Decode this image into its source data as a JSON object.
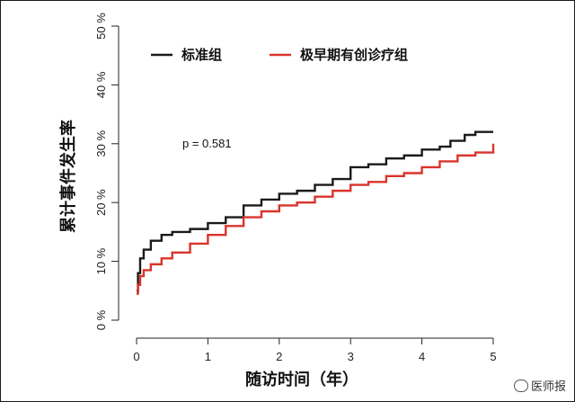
{
  "chart_data": {
    "type": "line",
    "title": "",
    "xlabel": "随访时间（年）",
    "ylabel": "累计事件发生率",
    "xlim": [
      0,
      5
    ],
    "ylim": [
      0,
      50
    ],
    "x_ticks": [
      "0",
      "1",
      "2",
      "3",
      "4",
      "5"
    ],
    "y_ticks": [
      "0 %",
      "10 %",
      "20 %",
      "30 %",
      "40 %",
      "50 %"
    ],
    "grid": false,
    "legend_position": "top",
    "annotation": "p = 0.581",
    "series": [
      {
        "name": "标准组",
        "color": "#1a1a1a",
        "points": [
          [
            0,
            5
          ],
          [
            0.02,
            8
          ],
          [
            0.05,
            10.5
          ],
          [
            0.1,
            12
          ],
          [
            0.2,
            13.5
          ],
          [
            0.35,
            14.5
          ],
          [
            0.5,
            15
          ],
          [
            0.75,
            15.5
          ],
          [
            1,
            16.5
          ],
          [
            1.25,
            17.5
          ],
          [
            1.5,
            19.5
          ],
          [
            1.75,
            20.5
          ],
          [
            2,
            21.5
          ],
          [
            2.25,
            22
          ],
          [
            2.5,
            23
          ],
          [
            2.75,
            24
          ],
          [
            3,
            26
          ],
          [
            3.25,
            26.5
          ],
          [
            3.5,
            27.5
          ],
          [
            3.75,
            28
          ],
          [
            4,
            29
          ],
          [
            4.25,
            29.5
          ],
          [
            4.4,
            30.5
          ],
          [
            4.6,
            31.5
          ],
          [
            4.75,
            32
          ],
          [
            5,
            32
          ]
        ]
      },
      {
        "name": "极早期有创诊疗组",
        "color": "#d9342b",
        "points": [
          [
            0,
            4.5
          ],
          [
            0.02,
            6
          ],
          [
            0.05,
            7.5
          ],
          [
            0.1,
            8.5
          ],
          [
            0.2,
            9.5
          ],
          [
            0.35,
            10.5
          ],
          [
            0.5,
            11.5
          ],
          [
            0.75,
            13
          ],
          [
            1,
            14.5
          ],
          [
            1.25,
            16
          ],
          [
            1.5,
            17.5
          ],
          [
            1.75,
            18.5
          ],
          [
            2,
            19.5
          ],
          [
            2.25,
            20
          ],
          [
            2.5,
            21
          ],
          [
            2.75,
            22
          ],
          [
            3,
            23
          ],
          [
            3.25,
            23.5
          ],
          [
            3.5,
            24.5
          ],
          [
            3.75,
            25
          ],
          [
            4,
            26
          ],
          [
            4.25,
            27
          ],
          [
            4.5,
            28
          ],
          [
            4.75,
            28.5
          ],
          [
            5,
            30
          ]
        ]
      }
    ]
  },
  "watermark": {
    "label": "医师报",
    "icon": "wechat-icon"
  }
}
